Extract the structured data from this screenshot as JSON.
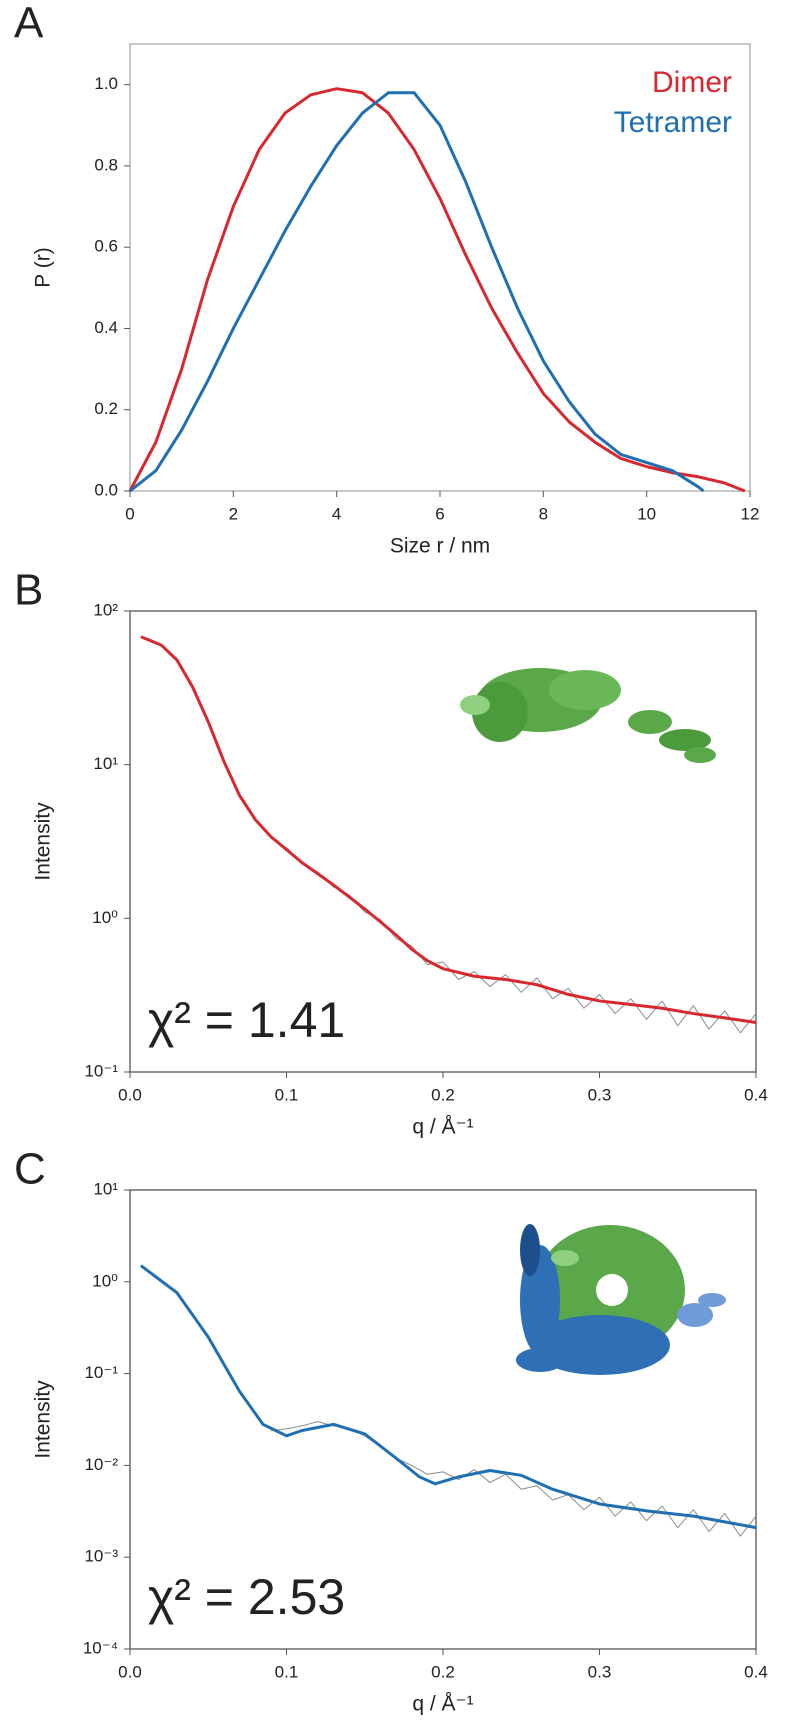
{
  "chart_data": [
    {
      "type": "line",
      "panel_label": "A",
      "x_label": "Size r / nm",
      "y_label": "P (r)",
      "legend": "upper right",
      "xlim": [
        0,
        12
      ],
      "xticks": [
        0,
        2,
        4,
        6,
        8,
        10,
        12
      ],
      "ylim": [
        0,
        1.1
      ],
      "yticks": [
        {
          "value": 0,
          "label": "0.0"
        },
        0.2,
        0.4,
        0.6,
        0.8,
        {
          "value": 1,
          "label": "1.0"
        }
      ],
      "series": [
        {
          "name": "Dimer",
          "color": "#d7282f",
          "x": [
            0,
            0.5,
            1,
            1.5,
            2,
            2.5,
            3,
            3.5,
            4,
            4.5,
            5,
            5.5,
            6,
            6.5,
            7,
            7.5,
            8,
            8.5,
            9,
            9.5,
            10,
            10.5,
            11,
            11.5,
            11.9
          ],
          "values": [
            0,
            0.12,
            0.3,
            0.52,
            0.7,
            0.84,
            0.93,
            0.975,
            0.99,
            0.98,
            0.93,
            0.84,
            0.72,
            0.58,
            0.45,
            0.34,
            0.24,
            0.17,
            0.12,
            0.08,
            0.06,
            0.045,
            0.035,
            0.02,
            0
          ]
        },
        {
          "name": "Tetramer",
          "color": "#1f6fb2",
          "x": [
            0,
            0.5,
            1,
            1.5,
            2,
            2.5,
            3,
            3.5,
            4,
            4.5,
            5,
            5.5,
            6,
            6.5,
            7,
            7.5,
            8,
            8.5,
            9,
            9.5,
            10,
            10.5,
            11,
            11.1
          ],
          "values": [
            0,
            0.05,
            0.15,
            0.27,
            0.4,
            0.52,
            0.64,
            0.75,
            0.85,
            0.93,
            0.98,
            0.98,
            0.9,
            0.76,
            0.6,
            0.45,
            0.32,
            0.22,
            0.14,
            0.09,
            0.07,
            0.05,
            0.01,
            0
          ]
        }
      ]
    },
    {
      "type": "line",
      "panel_label": "B",
      "x_label": "q / Å⁻¹",
      "y_label": "Intensity",
      "log_y": true,
      "annotation": "χ² = 1.41",
      "xlim": [
        0,
        0.4
      ],
      "xticks": [
        {
          "value": 0,
          "label": "0.0"
        },
        0.1,
        0.2,
        0.3,
        0.4
      ],
      "ylim": [
        0.1,
        100
      ],
      "yticks": [
        {
          "value": 0.1,
          "label": "10⁻¹"
        },
        {
          "value": 1,
          "label": "10⁰"
        },
        {
          "value": 10,
          "label": "10¹"
        },
        {
          "value": 100,
          "label": "10²"
        }
      ],
      "series": [
        {
          "color": "#8c8c8c",
          "x": [
            0.1,
            0.11,
            0.12,
            0.13,
            0.14,
            0.15,
            0.16,
            0.17,
            0.18,
            0.19,
            0.2,
            0.21,
            0.22,
            0.23,
            0.24,
            0.25,
            0.26,
            0.27,
            0.28,
            0.29,
            0.3,
            0.31,
            0.32,
            0.33,
            0.34,
            0.35,
            0.36,
            0.37,
            0.38,
            0.39,
            0.4
          ],
          "values": [
            2.9,
            2.25,
            2.0,
            1.6,
            1.42,
            1.1,
            0.98,
            0.74,
            0.66,
            0.5,
            0.52,
            0.4,
            0.45,
            0.36,
            0.43,
            0.33,
            0.41,
            0.3,
            0.35,
            0.26,
            0.32,
            0.24,
            0.3,
            0.22,
            0.29,
            0.2,
            0.27,
            0.19,
            0.25,
            0.18,
            0.24
          ]
        },
        {
          "color": "#d7282f",
          "x": [
            0.007,
            0.02,
            0.03,
            0.04,
            0.05,
            0.06,
            0.07,
            0.08,
            0.09,
            0.1,
            0.11,
            0.12,
            0.13,
            0.14,
            0.15,
            0.16,
            0.17,
            0.18,
            0.19,
            0.2,
            0.22,
            0.24,
            0.26,
            0.28,
            0.3,
            0.32,
            0.34,
            0.36,
            0.38,
            0.4
          ],
          "values": [
            68,
            60,
            48,
            32,
            19,
            10.5,
            6.3,
            4.4,
            3.4,
            2.8,
            2.3,
            1.95,
            1.65,
            1.38,
            1.15,
            0.95,
            0.78,
            0.63,
            0.53,
            0.47,
            0.42,
            0.4,
            0.37,
            0.32,
            0.29,
            0.275,
            0.26,
            0.24,
            0.225,
            0.21
          ]
        }
      ]
    },
    {
      "type": "line",
      "panel_label": "C",
      "x_label": "q / Å⁻¹",
      "y_label": "Intensity",
      "log_y": true,
      "annotation": "χ² = 2.53",
      "xlim": [
        0,
        0.4
      ],
      "xticks": [
        {
          "value": 0,
          "label": "0.0"
        },
        0.1,
        0.2,
        0.3,
        0.4
      ],
      "ylim": [
        0.0001,
        10
      ],
      "yticks": [
        {
          "value": 0.0001,
          "label": "10⁻⁴"
        },
        {
          "value": 0.001,
          "label": "10⁻³"
        },
        {
          "value": 0.01,
          "label": "10⁻²"
        },
        {
          "value": 0.1,
          "label": "10⁻¹"
        },
        {
          "value": 1,
          "label": "10⁰"
        },
        {
          "value": 10,
          "label": "10¹"
        }
      ],
      "series": [
        {
          "color": "#8c8c8c",
          "x": [
            0.09,
            0.1,
            0.11,
            0.12,
            0.13,
            0.14,
            0.15,
            0.16,
            0.17,
            0.18,
            0.19,
            0.2,
            0.21,
            0.22,
            0.23,
            0.24,
            0.25,
            0.26,
            0.27,
            0.28,
            0.29,
            0.3,
            0.31,
            0.32,
            0.33,
            0.34,
            0.35,
            0.36,
            0.37,
            0.38,
            0.39,
            0.4
          ],
          "values": [
            0.024,
            0.025,
            0.027,
            0.03,
            0.027,
            0.025,
            0.021,
            0.016,
            0.012,
            0.01,
            0.008,
            0.0085,
            0.007,
            0.009,
            0.0065,
            0.008,
            0.0055,
            0.006,
            0.0042,
            0.0048,
            0.0033,
            0.0045,
            0.0028,
            0.004,
            0.0025,
            0.0036,
            0.0021,
            0.0033,
            0.0019,
            0.003,
            0.0017,
            0.0028
          ]
        },
        {
          "color": "#1f6fb2",
          "x": [
            0.007,
            0.03,
            0.05,
            0.07,
            0.085,
            0.1,
            0.11,
            0.13,
            0.15,
            0.17,
            0.185,
            0.195,
            0.21,
            0.23,
            0.25,
            0.27,
            0.3,
            0.33,
            0.36,
            0.4
          ],
          "values": [
            1.5,
            0.76,
            0.25,
            0.064,
            0.028,
            0.021,
            0.024,
            0.028,
            0.022,
            0.012,
            0.0075,
            0.0063,
            0.0075,
            0.0088,
            0.0078,
            0.0055,
            0.0038,
            0.0032,
            0.0028,
            0.0021
          ]
        }
      ]
    }
  ]
}
